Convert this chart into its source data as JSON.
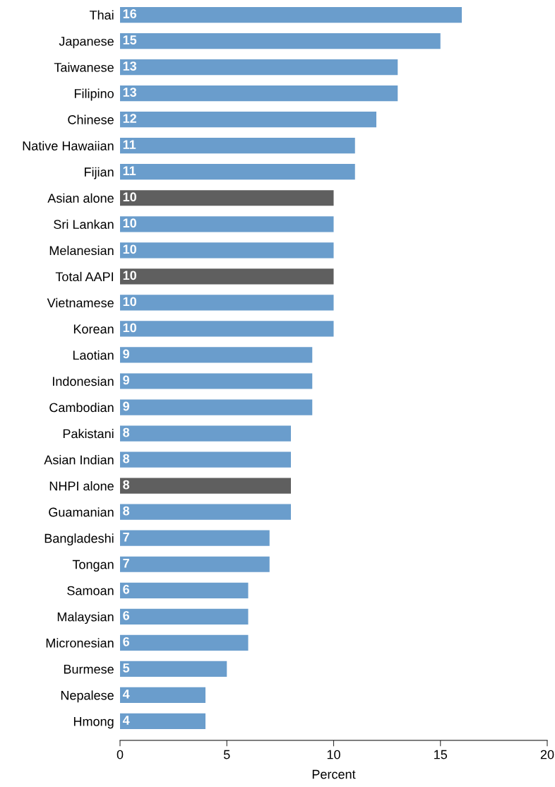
{
  "chart_data": {
    "type": "bar",
    "orientation": "horizontal",
    "xlabel": "Percent",
    "categories": [
      "Thai",
      "Japanese",
      "Taiwanese",
      "Filipino",
      "Chinese",
      "Native Hawaiian",
      "Fijian",
      "Asian alone",
      "Sri Lankan",
      "Melanesian",
      "Total AAPI",
      "Vietnamese",
      "Korean",
      "Laotian",
      "Indonesian",
      "Cambodian",
      "Pakistani",
      "Asian Indian",
      "NHPI alone",
      "Guamanian",
      "Bangladeshi",
      "Tongan",
      "Samoan",
      "Malaysian",
      "Micronesian",
      "Burmese",
      "Nepalese",
      "Hmong"
    ],
    "values": [
      16,
      15,
      13,
      13,
      12,
      11,
      11,
      10,
      10,
      10,
      10,
      10,
      10,
      9,
      9,
      9,
      8,
      8,
      8,
      8,
      7,
      7,
      6,
      6,
      6,
      5,
      4,
      4
    ],
    "colors": [
      "#6a9dcc",
      "#6a9dcc",
      "#6a9dcc",
      "#6a9dcc",
      "#6a9dcc",
      "#6a9dcc",
      "#6a9dcc",
      "#5f5f5f",
      "#6a9dcc",
      "#6a9dcc",
      "#5f5f5f",
      "#6a9dcc",
      "#6a9dcc",
      "#6a9dcc",
      "#6a9dcc",
      "#6a9dcc",
      "#6a9dcc",
      "#6a9dcc",
      "#5f5f5f",
      "#6a9dcc",
      "#6a9dcc",
      "#6a9dcc",
      "#6a9dcc",
      "#6a9dcc",
      "#6a9dcc",
      "#6a9dcc",
      "#6a9dcc",
      "#6a9dcc"
    ],
    "xlim": [
      0,
      20
    ],
    "xticks": [
      0,
      5,
      10,
      15,
      20
    ],
    "data_labels": true,
    "grid": false,
    "legend": false
  }
}
